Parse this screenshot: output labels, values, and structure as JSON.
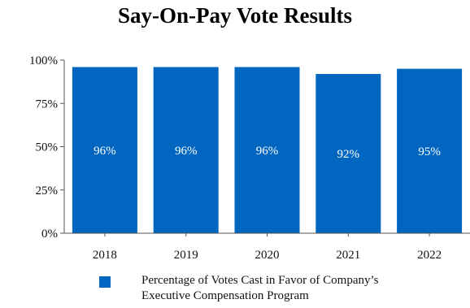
{
  "chart_data": {
    "type": "bar",
    "title": "Say-On-Pay Vote Results",
    "categories": [
      "2018",
      "2019",
      "2020",
      "2021",
      "2022"
    ],
    "series": [
      {
        "name": "Percentage of Votes Cast in Favor of  Company’s\nExecutive Compensation Program",
        "values": [
          96,
          96,
          96,
          92,
          95
        ],
        "labels": [
          "96%",
          "96%",
          "96%",
          "92%",
          "95%"
        ],
        "color": "#0066c0"
      }
    ],
    "yticks": [
      "0%",
      "25%",
      "50%",
      "75%",
      "100%"
    ],
    "ylim": [
      0,
      100
    ],
    "grid": false,
    "legend_position": "bottom"
  }
}
